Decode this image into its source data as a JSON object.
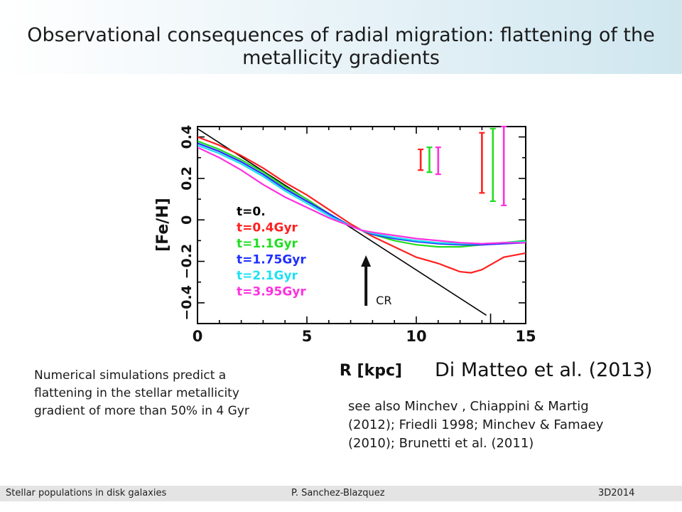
{
  "slide": {
    "title": "Observational consequences of radial migration: flattening of the metallicity gradients",
    "reference": "Di Matteo et al. (2013)",
    "left_text": "Numerical simulations predict a flattening in the stellar metallicity gradient of more than 50% in 4 Gyr",
    "right_text": "see also Minchev , Chiappini & Martig (2012); Friedli 1998; Minchev & Famaey (2010); Brunetti et al. (2011)",
    "cr_label": "CR"
  },
  "footer": {
    "left": "Stellar populations in disk galaxies",
    "center": "P. Sanchez-Blazquez",
    "right": "3D2014"
  },
  "chart_data": {
    "type": "line",
    "xlabel": "R [kpc]",
    "ylabel": "[Fe/H]",
    "xlim": [
      0,
      15
    ],
    "ylim": [
      -0.5,
      0.45
    ],
    "xticks": [
      0,
      5,
      10,
      15
    ],
    "yticks": [
      -0.4,
      -0.2,
      0,
      0.2,
      0.4
    ],
    "ytick_labels": [
      "−0.4",
      "−0.2",
      "0",
      "0.2",
      "0.4"
    ],
    "legend_position": "left",
    "series": [
      {
        "name": "t=0.",
        "color": "#000000",
        "x": [
          0,
          13.2
        ],
        "y": [
          0.44,
          -0.46
        ]
      },
      {
        "name": "t=0.4Gyr",
        "color": "#ff2020",
        "x": [
          0,
          1,
          2,
          3,
          4,
          5,
          6,
          7,
          7.5,
          8,
          9,
          10,
          11,
          11.5,
          12,
          12.5,
          13,
          13.5,
          14,
          14.5,
          15
        ],
        "y": [
          0.4,
          0.36,
          0.31,
          0.25,
          0.18,
          0.12,
          0.05,
          -0.02,
          -0.05,
          -0.08,
          -0.13,
          -0.18,
          -0.21,
          -0.23,
          -0.25,
          -0.255,
          -0.24,
          -0.21,
          -0.18,
          -0.17,
          -0.16
        ]
      },
      {
        "name": "t=1.1Gyr",
        "color": "#22dd22",
        "x": [
          0,
          1,
          2,
          3,
          4,
          5,
          6,
          7,
          7.5,
          8,
          9,
          10,
          11,
          12,
          13,
          14,
          15
        ],
        "y": [
          0.38,
          0.34,
          0.29,
          0.23,
          0.16,
          0.1,
          0.03,
          -0.03,
          -0.05,
          -0.07,
          -0.1,
          -0.12,
          -0.13,
          -0.13,
          -0.12,
          -0.11,
          -0.1
        ]
      },
      {
        "name": "t=1.75Gyr",
        "color": "#2030ff",
        "x": [
          0,
          1,
          2,
          3,
          4,
          5,
          6,
          7,
          7.5,
          8,
          9,
          10,
          11,
          12,
          13,
          14,
          15
        ],
        "y": [
          0.37,
          0.33,
          0.28,
          0.22,
          0.15,
          0.09,
          0.03,
          -0.03,
          -0.05,
          -0.07,
          -0.09,
          -0.105,
          -0.115,
          -0.12,
          -0.12,
          -0.115,
          -0.11
        ]
      },
      {
        "name": "t=2.1Gyr",
        "color": "#20e0f0",
        "x": [
          0,
          1,
          2,
          3,
          4,
          5,
          6,
          7,
          7.5,
          8,
          9,
          10,
          11,
          12,
          13,
          14,
          15
        ],
        "y": [
          0.36,
          0.32,
          0.27,
          0.21,
          0.14,
          0.08,
          0.02,
          -0.03,
          -0.05,
          -0.065,
          -0.085,
          -0.1,
          -0.11,
          -0.115,
          -0.115,
          -0.11,
          -0.105
        ]
      },
      {
        "name": "t=3.95Gyr",
        "color": "#ff30e0",
        "x": [
          0,
          1,
          2,
          3,
          4,
          5,
          6,
          7,
          7.5,
          8,
          9,
          10,
          11,
          12,
          13,
          14,
          15
        ],
        "y": [
          0.35,
          0.3,
          0.24,
          0.17,
          0.11,
          0.06,
          0.01,
          -0.03,
          -0.05,
          -0.06,
          -0.075,
          -0.09,
          -0.1,
          -0.11,
          -0.115,
          -0.11,
          -0.11
        ]
      }
    ],
    "error_bars": [
      {
        "color": "#ff2020",
        "x": 10.2,
        "y_low": 0.24,
        "y_high": 0.34
      },
      {
        "color": "#22dd22",
        "x": 10.6,
        "y_low": 0.23,
        "y_high": 0.35
      },
      {
        "color": "#ff30e0",
        "x": 11.0,
        "y_low": 0.22,
        "y_high": 0.35
      },
      {
        "color": "#ff2020",
        "x": 13.0,
        "y_low": 0.13,
        "y_high": 0.42
      },
      {
        "color": "#22dd22",
        "x": 13.5,
        "y_low": 0.09,
        "y_high": 0.44
      },
      {
        "color": "#ff30e0",
        "x": 14.0,
        "y_low": 0.07,
        "y_high": 0.45
      }
    ],
    "annotation": {
      "text": "CR",
      "x": 7.7
    }
  }
}
